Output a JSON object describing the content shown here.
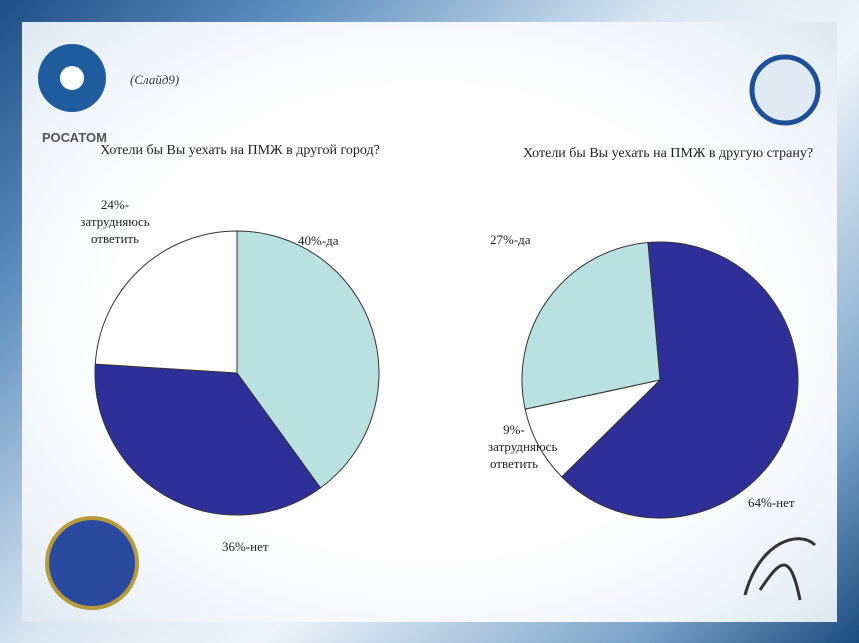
{
  "slide_label": "(Слайд9)",
  "logo_text": "РОСАТОМ",
  "chart_data": [
    {
      "type": "pie",
      "title": "Хотели бы Вы уехать на ПМЖ в другой город?",
      "values": [
        40,
        36,
        24
      ],
      "value_labels": [
        "40%-да",
        "36%-нет",
        "24%-затрудняюсь ответить"
      ],
      "colors": [
        "#b9e1e1",
        "#2f2f99",
        "#ffffff"
      ]
    },
    {
      "type": "pie",
      "title": "Хотели бы Вы уехать на ПМЖ в другую страну?",
      "values": [
        64,
        9,
        27
      ],
      "value_labels": [
        "64%-нет",
        "9%-затрудняюсь ответить",
        "27%-да"
      ],
      "colors": [
        "#2f2f99",
        "#ffffff",
        "#b9e1e1"
      ]
    }
  ]
}
